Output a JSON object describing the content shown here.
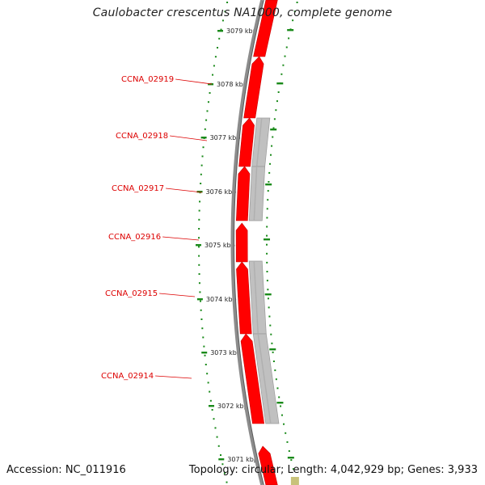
{
  "title": "Caulobacter crescentus NA1000, complete genome",
  "footer": {
    "accession": "Accession: NC_011916",
    "stats": "Topology: circular; Length: 4,042,929 bp; Genes: 3,933"
  },
  "colors": {
    "gene_forward": "#ff0000",
    "gene_label": "#dd0000",
    "gene_gray": "#c0c0c0",
    "backbone": "#8c8c8c",
    "tick": "#1a8a1a",
    "tick_label": "#222222",
    "small_feature": "#c8c27a"
  },
  "genes": [
    {
      "label": "CCNA_02919"
    },
    {
      "label": "CCNA_02918"
    },
    {
      "label": "CCNA_02917"
    },
    {
      "label": "CCNA_02916"
    },
    {
      "label": "CCNA_02915"
    },
    {
      "label": "CCNA_02914"
    }
  ],
  "scale_ticks": [
    {
      "label": "3079 kbp"
    },
    {
      "label": "3078 kbp"
    },
    {
      "label": "3077 kbp"
    },
    {
      "label": "3076 kbp"
    },
    {
      "label": "3075 kbp"
    },
    {
      "label": "3074 kbp"
    },
    {
      "label": "3073 kbp"
    },
    {
      "label": "3072 kbp"
    },
    {
      "label": "3071 kbp"
    }
  ]
}
